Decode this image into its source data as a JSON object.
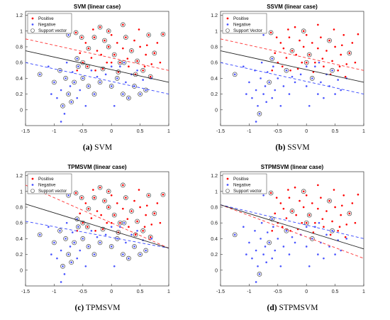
{
  "panels": [
    {
      "title": "SVM (linear case)",
      "caption_letter": "(a)",
      "caption_text": "SVM",
      "legend": [
        "Positive",
        "Negative",
        "Support vector"
      ],
      "lines": {
        "solid": [
          [
            -1.5,
            0.75
          ],
          [
            1.0,
            0.35
          ]
        ],
        "pos_dash": [
          [
            -1.5,
            0.9
          ],
          [
            1.0,
            0.5
          ]
        ],
        "neg_dash": [
          [
            -1.5,
            0.6
          ],
          [
            1.0,
            0.2
          ]
        ]
      },
      "support_vector_density": "high"
    },
    {
      "title": "SSVM (linear case)",
      "caption_letter": "(b)",
      "caption_text": "SSVM",
      "legend": [
        "Positive",
        "Negative",
        "Support Vector"
      ],
      "lines": {
        "solid": [
          [
            -1.5,
            0.75
          ],
          [
            1.0,
            0.35
          ]
        ],
        "pos_dash": [
          [
            -1.5,
            0.9
          ],
          [
            1.0,
            0.5
          ]
        ],
        "neg_dash": [
          [
            -1.5,
            0.6
          ],
          [
            1.0,
            0.2
          ]
        ]
      },
      "support_vector_density": "low"
    },
    {
      "title": "TPMSVM (linear case)",
      "caption_letter": "(c)",
      "caption_text": "TPMSVM",
      "legend": [
        "Positive",
        "Negative",
        "Support vector"
      ],
      "lines": {
        "solid": [
          [
            -1.5,
            0.84
          ],
          [
            1.0,
            0.28
          ]
        ],
        "pos_dash": [
          [
            -1.5,
            1.08
          ],
          [
            1.0,
            0.28
          ]
        ],
        "neg_dash": [
          [
            -1.5,
            0.62
          ],
          [
            1.0,
            0.28
          ]
        ]
      },
      "support_vector_density": "high"
    },
    {
      "title": "STPMSVM (linear case)",
      "caption_letter": "(d)",
      "caption_text": "STPMSVM",
      "legend": [
        "Positive",
        "Negative",
        "Support vector"
      ],
      "lines": {
        "solid": [
          [
            -1.5,
            0.83
          ],
          [
            1.0,
            0.27
          ]
        ],
        "pos_dash": [
          [
            -1.5,
            0.83
          ],
          [
            1.0,
            0.15
          ]
        ],
        "neg_dash": [
          [
            -1.5,
            0.83
          ],
          [
            1.0,
            0.4
          ]
        ]
      },
      "support_vector_density": "low"
    }
  ],
  "chart_data": {
    "type": "scatter",
    "xlim": [
      -1.5,
      1.0
    ],
    "ylim": [
      -0.2,
      1.25
    ],
    "xticks": [
      "-1.5",
      "-1",
      "-0.5",
      "0",
      "0.5",
      "1"
    ],
    "yticks": [
      "0",
      "0.2",
      "0.4",
      "0.6",
      "0.8",
      "1",
      "1.2"
    ],
    "series": [
      {
        "name": "Positive",
        "color": "#ff0000",
        "points": [
          [
            -0.62,
            0.98
          ],
          [
            -0.55,
            0.72
          ],
          [
            -0.5,
            0.6
          ],
          [
            -0.45,
            0.85
          ],
          [
            -0.4,
            0.78
          ],
          [
            -0.35,
            0.66
          ],
          [
            -0.3,
            0.92
          ],
          [
            -0.25,
            0.75
          ],
          [
            -0.2,
            1.05
          ],
          [
            -0.18,
            0.7
          ],
          [
            -0.12,
            0.88
          ],
          [
            -0.08,
            0.6
          ],
          [
            -0.05,
            0.8
          ],
          [
            0.0,
            0.95
          ],
          [
            0.05,
            0.7
          ],
          [
            0.1,
            0.85
          ],
          [
            0.15,
            0.6
          ],
          [
            0.2,
            0.78
          ],
          [
            0.25,
            0.92
          ],
          [
            0.3,
            0.55
          ],
          [
            0.35,
            0.75
          ],
          [
            0.4,
            0.88
          ],
          [
            0.45,
            0.62
          ],
          [
            0.5,
            0.8
          ],
          [
            0.55,
            0.5
          ],
          [
            0.6,
            0.7
          ],
          [
            0.65,
            0.95
          ],
          [
            0.7,
            0.58
          ],
          [
            0.75,
            0.72
          ],
          [
            0.8,
            0.85
          ],
          [
            0.9,
            0.96
          ],
          [
            -0.6,
            0.5
          ],
          [
            -0.42,
            0.55
          ],
          [
            -0.28,
            0.5
          ],
          [
            -0.15,
            0.52
          ],
          [
            0.0,
            0.6
          ],
          [
            0.12,
            0.48
          ],
          [
            0.28,
            0.65
          ],
          [
            0.42,
            0.45
          ],
          [
            0.58,
            0.55
          ],
          [
            0.68,
            0.42
          ],
          [
            0.85,
            0.6
          ],
          [
            -0.05,
            1.0
          ],
          [
            -0.32,
            1.02
          ],
          [
            0.2,
            1.08
          ],
          [
            0.48,
            1.02
          ],
          [
            -0.52,
            0.92
          ],
          [
            0.62,
            0.82
          ]
        ]
      },
      {
        "name": "Negative",
        "color": "#4a55ff",
        "points": [
          [
            -1.25,
            0.45
          ],
          [
            -1.1,
            0.55
          ],
          [
            -1.0,
            0.35
          ],
          [
            -0.95,
            0.15
          ],
          [
            -0.9,
            0.5
          ],
          [
            -0.88,
            0.25
          ],
          [
            -0.85,
            0.05
          ],
          [
            -0.82,
            -0.05
          ],
          [
            -0.8,
            0.4
          ],
          [
            -0.78,
            0.6
          ],
          [
            -0.75,
            0.2
          ],
          [
            -0.72,
            0.3
          ],
          [
            -0.7,
            0.1
          ],
          [
            -0.68,
            0.48
          ],
          [
            -0.65,
            0.35
          ],
          [
            -0.6,
            0.15
          ],
          [
            -0.58,
            0.55
          ],
          [
            -0.55,
            0.25
          ],
          [
            -0.5,
            0.4
          ],
          [
            -0.45,
            0.05
          ],
          [
            -0.4,
            0.3
          ],
          [
            -0.35,
            0.5
          ],
          [
            -0.3,
            0.2
          ],
          [
            -0.25,
            0.42
          ],
          [
            -0.2,
            0.35
          ],
          [
            -0.1,
            0.45
          ],
          [
            0.0,
            0.3
          ],
          [
            0.05,
            0.05
          ],
          [
            0.1,
            0.4
          ],
          [
            0.15,
            0.55
          ],
          [
            0.2,
            0.2
          ],
          [
            0.25,
            0.35
          ],
          [
            0.3,
            0.15
          ],
          [
            0.35,
            0.45
          ],
          [
            0.4,
            0.3
          ],
          [
            0.45,
            0.5
          ],
          [
            0.5,
            0.2
          ],
          [
            0.55,
            0.38
          ],
          [
            0.6,
            0.25
          ],
          [
            0.7,
            0.4
          ],
          [
            -0.75,
            0.95
          ],
          [
            -0.88,
            -0.15
          ],
          [
            -0.6,
            0.65
          ],
          [
            0.0,
            0.55
          ],
          [
            0.22,
            0.6
          ],
          [
            -1.05,
            0.2
          ]
        ]
      }
    ]
  }
}
